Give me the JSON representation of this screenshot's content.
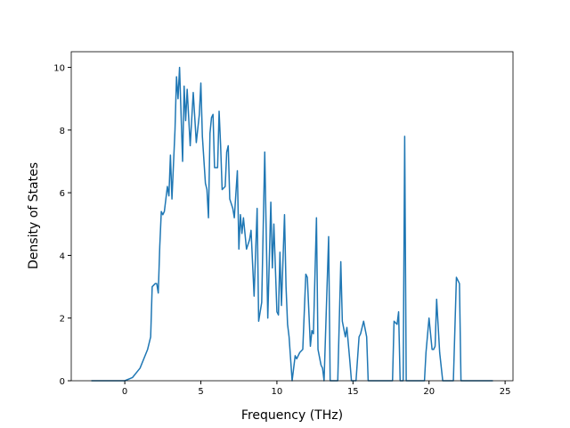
{
  "chart_data": {
    "type": "line",
    "x_label": "Frequency (THz)",
    "y_label": "Density of States",
    "x": [
      -2.2,
      0,
      0.5,
      1.0,
      1.5,
      1.7,
      1.8,
      2.0,
      2.1,
      2.2,
      2.3,
      2.4,
      2.5,
      2.6,
      2.7,
      2.8,
      2.9,
      3.0,
      3.1,
      3.3,
      3.4,
      3.5,
      3.6,
      3.8,
      3.9,
      4.0,
      4.1,
      4.3,
      4.5,
      4.7,
      4.9,
      5.0,
      5.1,
      5.3,
      5.4,
      5.5,
      5.6,
      5.7,
      5.8,
      5.9,
      6.1,
      6.2,
      6.3,
      6.4,
      6.6,
      6.7,
      6.8,
      6.9,
      7.1,
      7.2,
      7.4,
      7.5,
      7.6,
      7.7,
      7.8,
      8.0,
      8.2,
      8.3,
      8.5,
      8.7,
      8.8,
      9.0,
      9.2,
      9.4,
      9.6,
      9.7,
      9.8,
      10.0,
      10.1,
      10.2,
      10.3,
      10.5,
      10.6,
      10.7,
      10.8,
      11.0,
      11.2,
      11.3,
      11.5,
      11.7,
      11.9,
      12.0,
      12.2,
      12.3,
      12.4,
      12.6,
      12.7,
      12.9,
      13.0,
      13.1,
      13.4,
      13.5,
      14.0,
      14.2,
      14.3,
      14.5,
      14.6,
      14.8,
      14.9,
      15.2,
      15.4,
      15.5,
      15.7,
      15.9,
      16.0,
      17.6,
      17.7,
      17.9,
      18.0,
      18.1,
      18.3,
      18.4,
      18.5,
      19.7,
      19.8,
      20.0,
      20.2,
      20.3,
      20.4,
      20.5,
      20.7,
      20.9,
      21.6,
      21.8,
      22.0,
      22.1,
      24.2
    ],
    "values": [
      0,
      0,
      0.1,
      0.4,
      1.0,
      1.4,
      3.0,
      3.1,
      3.1,
      2.8,
      4.3,
      5.4,
      5.3,
      5.4,
      5.8,
      6.2,
      5.9,
      7.2,
      5.8,
      8.0,
      9.7,
      9.0,
      10.0,
      7.0,
      9.4,
      8.3,
      9.3,
      7.5,
      9.2,
      7.6,
      8.5,
      9.5,
      7.8,
      6.3,
      6.1,
      5.2,
      7.9,
      8.4,
      8.5,
      6.8,
      6.8,
      8.6,
      7.5,
      6.1,
      6.2,
      7.3,
      7.5,
      5.8,
      5.5,
      5.2,
      6.7,
      4.2,
      5.3,
      4.7,
      5.2,
      4.2,
      4.5,
      4.8,
      2.7,
      5.5,
      1.9,
      2.5,
      7.3,
      2.0,
      5.7,
      3.6,
      5.0,
      2.2,
      2.1,
      4.1,
      2.4,
      5.3,
      3.0,
      1.8,
      1.4,
      0,
      0.8,
      0.7,
      0.9,
      1.0,
      3.4,
      3.3,
      1.1,
      1.6,
      1.5,
      5.2,
      1.0,
      0.5,
      0.4,
      0,
      4.6,
      0,
      0,
      3.8,
      1.9,
      1.4,
      1.7,
      0.6,
      0,
      0,
      1.4,
      1.5,
      1.9,
      1.4,
      0,
      0,
      1.9,
      1.8,
      2.2,
      0,
      0,
      7.8,
      0,
      0,
      0.9,
      2.0,
      1.0,
      1.0,
      1.1,
      2.6,
      0.9,
      0,
      0,
      3.3,
      3.1,
      0,
      0
    ],
    "color": "#1f77b4",
    "xlim": [
      -3.52,
      25.52
    ],
    "ylim": [
      0,
      10.5
    ],
    "xticks": [
      0,
      5,
      10,
      15,
      20,
      25
    ],
    "yticks": [
      0,
      2,
      4,
      6,
      8,
      10
    ]
  }
}
